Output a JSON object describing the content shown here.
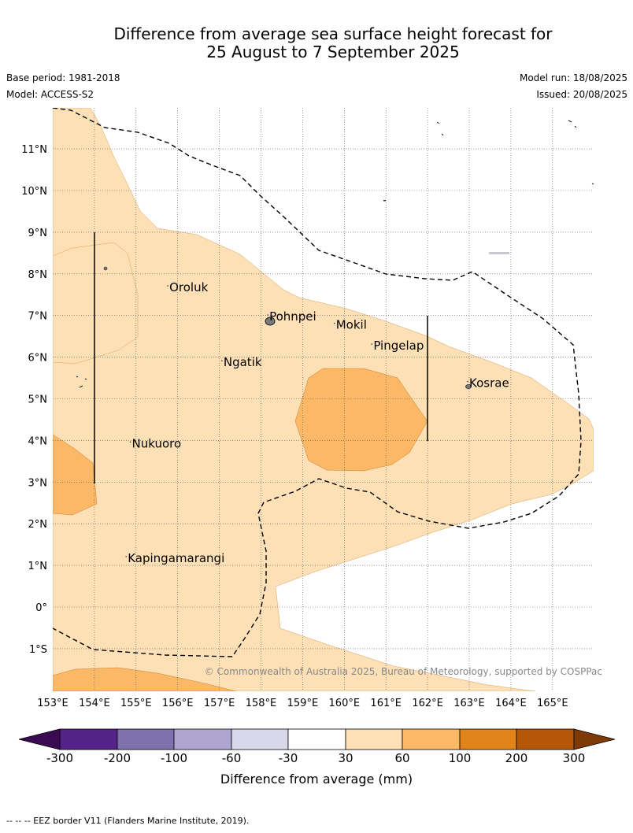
{
  "title": {
    "line1": "Difference from average sea surface height forecast for",
    "line2": "25 August to 7 September 2025"
  },
  "meta": {
    "base_period": "Base period: 1981-2018",
    "model": "Model: ACCESS-S2",
    "model_run": "Model run: 18/08/2025",
    "issued": "Issued: 20/08/2025"
  },
  "map": {
    "lon_range": [
      153,
      166
    ],
    "lat_range": [
      -2,
      12
    ],
    "lon_ticks": [
      "153°E",
      "154°E",
      "155°E",
      "156°E",
      "157°E",
      "158°E",
      "159°E",
      "160°E",
      "161°E",
      "162°E",
      "163°E",
      "164°E",
      "165°E"
    ],
    "lat_ticks": [
      "11°N",
      "10°N",
      "9°N",
      "8°N",
      "7°N",
      "6°N",
      "5°N",
      "4°N",
      "3°N",
      "2°N",
      "1°N",
      "0°",
      "1°S"
    ],
    "places": [
      {
        "name": "Oroluk",
        "lon": 155.8,
        "lat": 7.6
      },
      {
        "name": "Pohnpei",
        "lon": 158.2,
        "lat": 6.9
      },
      {
        "name": "Mokil",
        "lon": 159.8,
        "lat": 6.7
      },
      {
        "name": "Pingelap",
        "lon": 160.7,
        "lat": 6.2
      },
      {
        "name": "Ngatik",
        "lon": 157.1,
        "lat": 5.8
      },
      {
        "name": "Kosrae",
        "lon": 163.0,
        "lat": 5.3
      },
      {
        "name": "Nukuoro",
        "lon": 154.9,
        "lat": 3.85
      },
      {
        "name": "Kapingamarangi",
        "lon": 154.8,
        "lat": 1.1
      }
    ],
    "copyright": "© Commonwealth of Australia 2025, Bureau of Meteorology, supported by COSPPac",
    "fill_colors": {
      "30_60": "#fde0b6",
      "60_100": "#fbb867"
    }
  },
  "colorbar": {
    "ticks": [
      "-300",
      "-200",
      "-100",
      "-60",
      "-30",
      "30",
      "60",
      "100",
      "200",
      "300"
    ],
    "colors": [
      "#3b0b52",
      "#55228a",
      "#7f71ad",
      "#aea6d0",
      "#d8d8ea",
      "#ffffff",
      "#fde0b6",
      "#fbb867",
      "#e0841a",
      "#b45808",
      "#7d3a06"
    ],
    "label": "Difference from average (mm)"
  },
  "footnote": "--  --  -- EEZ border V11 (Flanders Marine Institute, 2019)."
}
